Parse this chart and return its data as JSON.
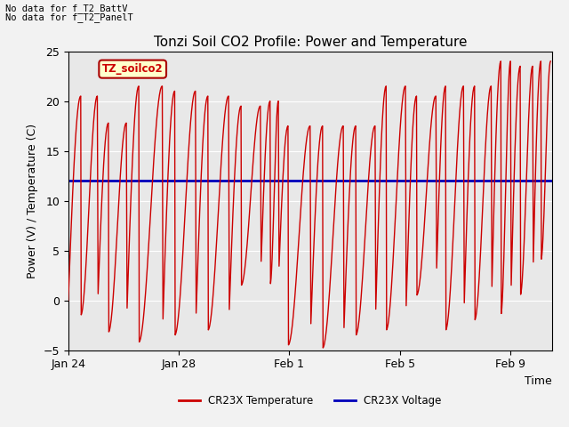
{
  "title": "Tonzi Soil CO2 Profile: Power and Temperature",
  "xlabel": "Time",
  "ylabel": "Power (V) / Temperature (C)",
  "ylim": [
    -5,
    25
  ],
  "yticks": [
    -5,
    0,
    5,
    10,
    15,
    20,
    25
  ],
  "xlim_days": [
    0,
    17.5
  ],
  "x_tick_positions": [
    0,
    4,
    8,
    12,
    16
  ],
  "x_tick_labels": [
    "Jan 24",
    "Jan 28",
    "Feb 1",
    "Feb 5",
    "Feb 9"
  ],
  "annotation1": "No data for f_T2_BattV",
  "annotation2": "No data for f_T2_PanelT",
  "label_box_text": "TZ_soilco2",
  "blue_value": 12.0,
  "blue_color": "#0000bb",
  "red_color": "#cc0000",
  "bg_color": "#e8e8e8",
  "fig_bg_color": "#f2f2f2",
  "legend_red": "CR23X Temperature",
  "legend_blue": "CR23X Voltage",
  "title_fontsize": 11,
  "axis_fontsize": 9,
  "cycles": [
    {
      "start": 0.0,
      "peak_x": 0.45,
      "peak_y": 20.5,
      "trough_x": 1.05,
      "trough_y": -1.5
    },
    {
      "start": 1.05,
      "peak_x": 1.45,
      "peak_y": 17.8,
      "trough_x": 2.1,
      "trough_y": -3.2
    },
    {
      "start": 2.1,
      "peak_x": 2.55,
      "peak_y": 21.5,
      "trough_x": 3.4,
      "trough_y": -4.2
    },
    {
      "start": 3.4,
      "peak_x": 3.85,
      "peak_y": 21.0,
      "trough_x": 4.6,
      "trough_y": -3.5
    },
    {
      "start": 4.6,
      "peak_x": 5.05,
      "peak_y": 20.5,
      "trough_x": 5.8,
      "trough_y": -3.0
    },
    {
      "start": 5.8,
      "peak_x": 6.25,
      "peak_y": 19.5,
      "trough_x": 6.95,
      "trough_y": 1.5
    },
    {
      "start": 6.95,
      "peak_x": 7.3,
      "peak_y": 20.0,
      "trough_x": 7.6,
      "trough_y": 1.5
    },
    {
      "start": 7.6,
      "peak_x": 7.95,
      "peak_y": 17.5,
      "trough_x": 8.75,
      "trough_y": -4.5
    },
    {
      "start": 8.75,
      "peak_x": 9.2,
      "peak_y": 17.5,
      "trough_x": 9.95,
      "trough_y": -4.8
    },
    {
      "start": 9.95,
      "peak_x": 10.4,
      "peak_y": 17.5,
      "trough_x": 11.1,
      "trough_y": -3.5
    },
    {
      "start": 11.1,
      "peak_x": 11.5,
      "peak_y": 21.5,
      "trough_x": 12.2,
      "trough_y": -3.0
    },
    {
      "start": 12.2,
      "peak_x": 12.6,
      "peak_y": 20.5,
      "trough_x": 13.3,
      "trough_y": 0.5
    },
    {
      "start": 13.3,
      "peak_x": 13.65,
      "peak_y": 21.5,
      "trough_x": 14.3,
      "trough_y": -3.0
    },
    {
      "start": 14.3,
      "peak_x": 14.7,
      "peak_y": 21.5,
      "trough_x": 15.3,
      "trough_y": -2.0
    },
    {
      "start": 15.3,
      "peak_x": 15.65,
      "peak_y": 24.0,
      "trough_x": 16.0,
      "trough_y": -1.5
    },
    {
      "start": 16.0,
      "peak_x": 16.35,
      "peak_y": 23.5,
      "trough_x": 16.8,
      "trough_y": 0.5
    },
    {
      "start": 16.8,
      "peak_x": 17.1,
      "peak_y": 24.0,
      "trough_x": 17.45,
      "trough_y": 4.0
    }
  ]
}
